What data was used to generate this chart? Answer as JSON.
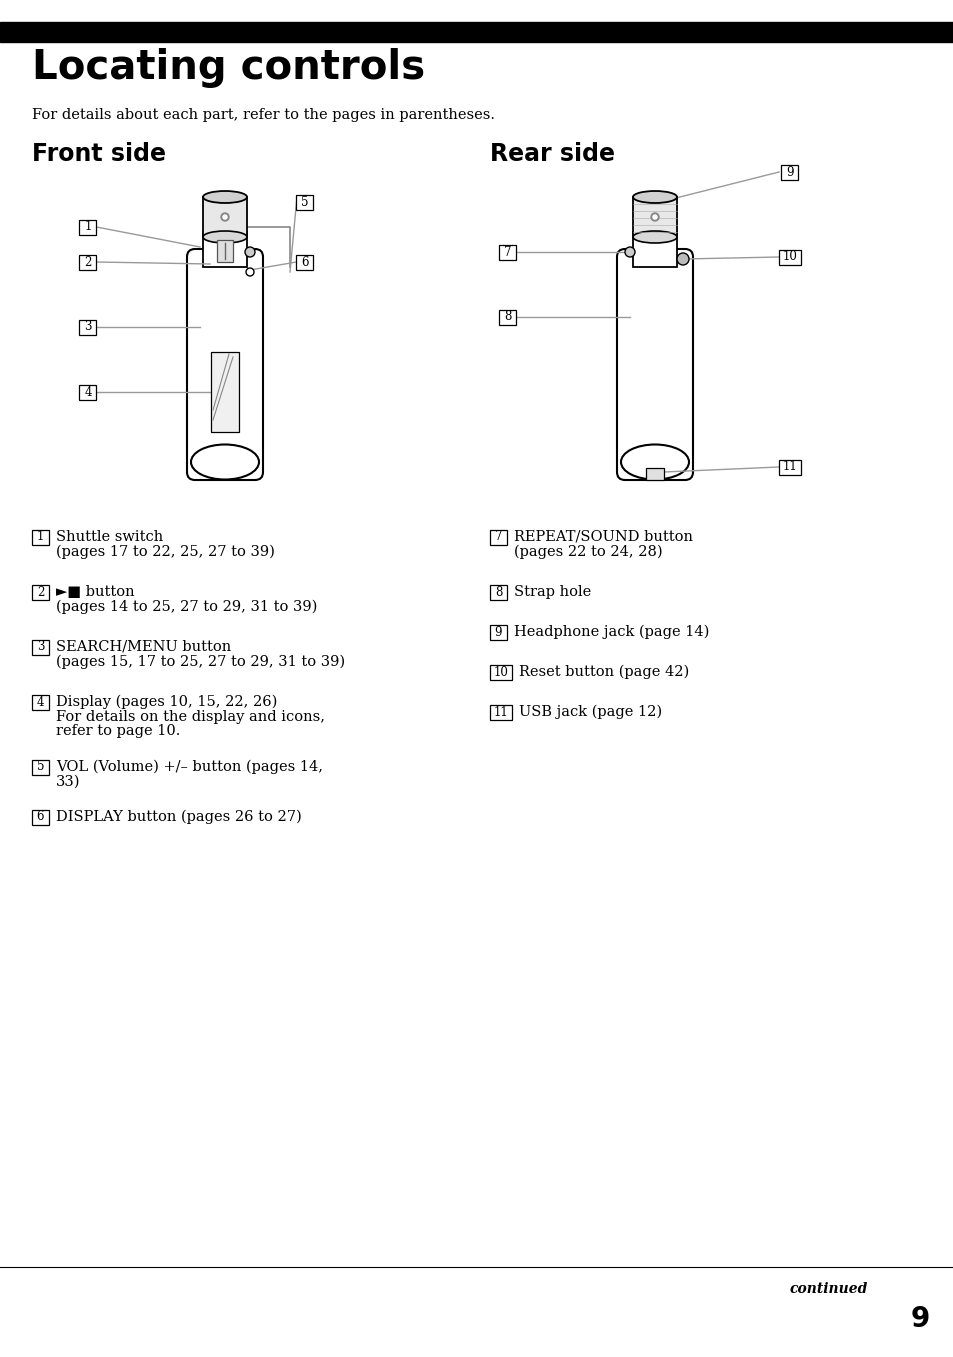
{
  "title": "Locating controls",
  "subtitle": "For details about each part, refer to the pages in parentheses.",
  "front_side_label": "Front side",
  "rear_side_label": "Rear side",
  "bg_color": "#ffffff",
  "text_color": "#000000",
  "header_bar_color": "#000000",
  "page_number": "9",
  "continued_text": "continued",
  "front_items": [
    [
      "1",
      "Shuttle switch",
      "(pages 17 to 22, 25, 27 to 39)"
    ],
    [
      "2",
      "►■ button",
      "(pages 14 to 25, 27 to 29, 31 to 39)"
    ],
    [
      "3",
      "SEARCH/MENU button",
      "(pages 15, 17 to 25, 27 to 29, 31 to 39)"
    ],
    [
      "4",
      "Display (pages 10, 15, 22, 26)",
      "For details on the display and icons,\nrefer to page 10."
    ],
    [
      "5",
      "VOL (Volume) +/– button (pages 14,\n33)",
      ""
    ],
    [
      "6",
      "DISPLAY button (pages 26 to 27)",
      ""
    ]
  ],
  "rear_items": [
    [
      "7",
      "REPEAT/SOUND button",
      "(pages 22 to 24, 28)"
    ],
    [
      "8",
      "Strap hole",
      ""
    ],
    [
      "9",
      "Headphone jack (page 14)",
      ""
    ],
    [
      "10",
      "Reset button (page 42)",
      ""
    ],
    [
      "11",
      "USB jack (page 12)",
      ""
    ]
  ]
}
